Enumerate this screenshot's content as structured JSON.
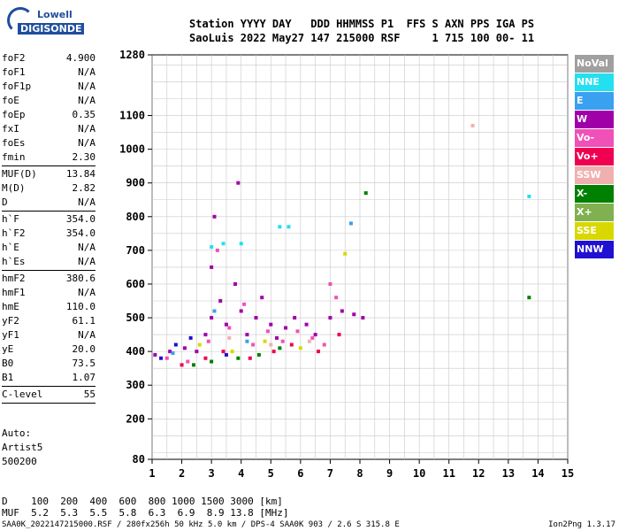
{
  "logo": {
    "line1": "Lowell",
    "line2": "DIGISONDE"
  },
  "header": {
    "line1": "Station YYYY DAY   DDD HHMMSS P1  FFS S AXN PPS IGA PS",
    "line2": "SaoLuis 2022 May27 147 215000 RSF     1 715 100 00- 11"
  },
  "params": [
    {
      "k": "foF2",
      "v": "4.900"
    },
    {
      "k": "foF1",
      "v": "N/A"
    },
    {
      "k": "foF1p",
      "v": "N/A"
    },
    {
      "k": "foE",
      "v": "N/A"
    },
    {
      "k": "foEp",
      "v": "0.35"
    },
    {
      "k": "fxI",
      "v": "N/A"
    },
    {
      "k": "foEs",
      "v": "N/A"
    },
    {
      "k": "fmin",
      "v": "2.30"
    },
    {
      "sep": true
    },
    {
      "k": "MUF(D)",
      "v": "13.84"
    },
    {
      "k": "M(D)",
      "v": "2.82"
    },
    {
      "k": "D",
      "v": "N/A"
    },
    {
      "sep": true
    },
    {
      "k": "h`F",
      "v": "354.0"
    },
    {
      "k": "h`F2",
      "v": "354.0"
    },
    {
      "k": "h`E",
      "v": "N/A"
    },
    {
      "k": "h`Es",
      "v": "N/A"
    },
    {
      "sep": true
    },
    {
      "k": "hmF2",
      "v": "380.6"
    },
    {
      "k": "hmF1",
      "v": "N/A"
    },
    {
      "k": "hmE",
      "v": "110.0"
    },
    {
      "k": "yF2",
      "v": "61.1"
    },
    {
      "k": "yF1",
      "v": "N/A"
    },
    {
      "k": "yE",
      "v": "20.0"
    },
    {
      "k": "B0",
      "v": "73.5"
    },
    {
      "k": "B1",
      "v": "1.07"
    },
    {
      "sep": true
    },
    {
      "k": "C-level",
      "v": "55"
    },
    {
      "sep": true
    }
  ],
  "auto": [
    "Auto:",
    "Artist5",
    "500200"
  ],
  "footer": {
    "line1": "D    100  200  400  600  800 1000 1500 3000 [km]",
    "line2": "MUF  5.2  5.3  5.5  5.8  6.3  6.9  8.9 13.8 [MHz]"
  },
  "bottom_text": "SAA0K_2022147215000.RSF / 280fx256h 50 kHz 5.0 km / DPS-4 SAA0K 903 / 2.6 S 315.8 E",
  "version": "Ion2Png 1.3.17",
  "legend": [
    {
      "label": "NoVal",
      "color": "#a0a0a0"
    },
    {
      "label": "NNE",
      "color": "#22e0f0"
    },
    {
      "label": "E",
      "color": "#3aa0f0"
    },
    {
      "label": "W",
      "color": "#a000a8"
    },
    {
      "label": "Vo-",
      "color": "#f050b8"
    },
    {
      "label": "Vo+",
      "color": "#f00050"
    },
    {
      "label": "SSW",
      "color": "#f0b0b0"
    },
    {
      "label": "X-",
      "color": "#008000"
    },
    {
      "label": "X+",
      "color": "#80b050"
    },
    {
      "label": "SSE",
      "color": "#d8d800"
    },
    {
      "label": "NNW",
      "color": "#2010d0"
    }
  ],
  "chart_data": {
    "type": "scatter",
    "x_ticks": [
      "1",
      "2",
      "3",
      "4",
      "5",
      "6",
      "7",
      "8",
      "9",
      "10",
      "11",
      "12",
      "13",
      "14",
      "15"
    ],
    "y_ticks": [
      "80",
      "200",
      "300",
      "400",
      "500",
      "600",
      "700",
      "800",
      "900",
      "1000",
      "1100",
      "1280"
    ],
    "xlim": [
      1,
      15
    ],
    "ylim": [
      80,
      1280
    ],
    "grid": true,
    "series": [
      {
        "color": "#a000a8",
        "points": [
          [
            1.1,
            390
          ],
          [
            1.6,
            400
          ],
          [
            2.1,
            410
          ],
          [
            2.5,
            400
          ],
          [
            2.8,
            450
          ],
          [
            3.0,
            500
          ],
          [
            3.0,
            650
          ],
          [
            3.1,
            800
          ],
          [
            3.3,
            550
          ],
          [
            3.5,
            480
          ],
          [
            3.8,
            600
          ],
          [
            3.9,
            900
          ],
          [
            4.0,
            520
          ],
          [
            4.2,
            450
          ],
          [
            4.5,
            500
          ],
          [
            4.7,
            560
          ],
          [
            5.0,
            480
          ],
          [
            5.2,
            440
          ],
          [
            5.5,
            470
          ],
          [
            5.8,
            500
          ],
          [
            6.2,
            480
          ],
          [
            6.5,
            450
          ],
          [
            7.0,
            500
          ],
          [
            7.4,
            520
          ],
          [
            7.8,
            510
          ],
          [
            8.1,
            500
          ]
        ]
      },
      {
        "color": "#f050b8",
        "points": [
          [
            1.5,
            380
          ],
          [
            2.2,
            370
          ],
          [
            2.9,
            430
          ],
          [
            3.2,
            700
          ],
          [
            3.6,
            470
          ],
          [
            4.1,
            540
          ],
          [
            4.4,
            420
          ],
          [
            4.9,
            460
          ],
          [
            5.4,
            430
          ],
          [
            5.9,
            460
          ],
          [
            6.4,
            440
          ],
          [
            6.8,
            420
          ],
          [
            7.0,
            600
          ],
          [
            7.2,
            560
          ]
        ]
      },
      {
        "color": "#f00050",
        "points": [
          [
            2.0,
            360
          ],
          [
            2.8,
            380
          ],
          [
            3.4,
            400
          ],
          [
            4.3,
            380
          ],
          [
            5.1,
            400
          ],
          [
            5.7,
            420
          ],
          [
            6.6,
            400
          ],
          [
            7.3,
            450
          ]
        ]
      },
      {
        "color": "#22e0f0",
        "points": [
          [
            3.0,
            710
          ],
          [
            3.4,
            720
          ],
          [
            4.0,
            720
          ],
          [
            5.3,
            770
          ],
          [
            5.6,
            770
          ],
          [
            13.7,
            860
          ]
        ]
      },
      {
        "color": "#008000",
        "points": [
          [
            2.4,
            360
          ],
          [
            3.0,
            370
          ],
          [
            3.9,
            380
          ],
          [
            4.6,
            390
          ],
          [
            5.3,
            410
          ],
          [
            8.2,
            870
          ],
          [
            13.7,
            560
          ]
        ]
      },
      {
        "color": "#d8d800",
        "points": [
          [
            2.6,
            420
          ],
          [
            3.7,
            400
          ],
          [
            4.8,
            430
          ],
          [
            6.0,
            410
          ],
          [
            7.5,
            690
          ]
        ]
      },
      {
        "color": "#3aa0f0",
        "points": [
          [
            1.7,
            395
          ],
          [
            3.1,
            520
          ],
          [
            4.2,
            430
          ],
          [
            7.7,
            780
          ]
        ]
      },
      {
        "color": "#2010d0",
        "points": [
          [
            1.3,
            380
          ],
          [
            1.8,
            420
          ],
          [
            2.3,
            440
          ],
          [
            3.5,
            390
          ]
        ]
      },
      {
        "color": "#f0b0b0",
        "points": [
          [
            3.6,
            440
          ],
          [
            5.0,
            420
          ],
          [
            6.3,
            430
          ],
          [
            11.8,
            1070
          ]
        ]
      }
    ]
  }
}
